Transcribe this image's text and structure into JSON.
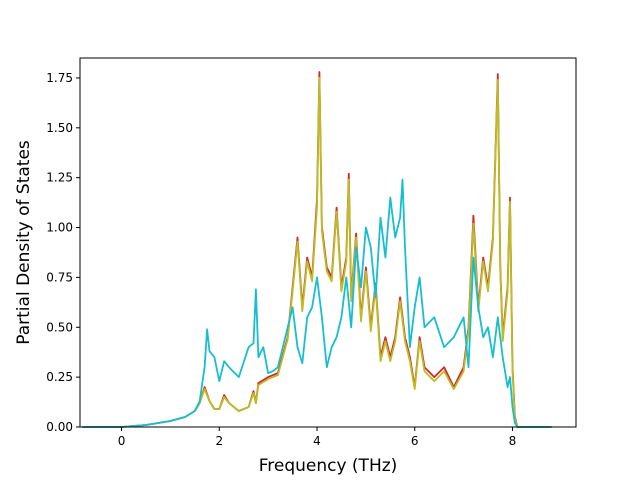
{
  "chart_data": {
    "type": "line",
    "title": "",
    "xlabel": "Frequency (THz)",
    "ylabel": "Partial Density of States",
    "xlim": [
      -0.85,
      9.3
    ],
    "ylim": [
      0,
      1.85
    ],
    "xticks": [
      0,
      2,
      4,
      6,
      8
    ],
    "xtick_labels": [
      "0",
      "2",
      "4",
      "6",
      "8"
    ],
    "yticks": [
      0.0,
      0.25,
      0.5,
      0.75,
      1.0,
      1.25,
      1.5,
      1.75
    ],
    "ytick_labels": [
      "0.00",
      "0.25",
      "0.50",
      "0.75",
      "1.00",
      "1.25",
      "1.50",
      "1.75"
    ],
    "grid": false,
    "legend": "none",
    "series": [
      {
        "color": "#d62728",
        "x": [
          -0.8,
          0.0,
          0.5,
          1.0,
          1.3,
          1.5,
          1.6,
          1.7,
          1.8,
          1.9,
          2.0,
          2.1,
          2.2,
          2.4,
          2.6,
          2.7,
          2.75,
          2.8,
          3.0,
          3.2,
          3.4,
          3.5,
          3.6,
          3.7,
          3.8,
          3.9,
          4.0,
          4.05,
          4.1,
          4.2,
          4.3,
          4.4,
          4.5,
          4.6,
          4.65,
          4.7,
          4.8,
          4.9,
          5.0,
          5.1,
          5.2,
          5.3,
          5.4,
          5.5,
          5.6,
          5.7,
          5.8,
          5.9,
          6.0,
          6.1,
          6.2,
          6.4,
          6.6,
          6.8,
          7.0,
          7.1,
          7.2,
          7.3,
          7.4,
          7.5,
          7.6,
          7.7,
          7.75,
          7.8,
          7.9,
          7.95,
          8.0,
          8.05,
          8.1,
          8.8
        ],
        "y": [
          0.0,
          0.0,
          0.01,
          0.03,
          0.05,
          0.08,
          0.12,
          0.2,
          0.13,
          0.09,
          0.09,
          0.16,
          0.12,
          0.08,
          0.1,
          0.18,
          0.12,
          0.22,
          0.25,
          0.27,
          0.45,
          0.7,
          0.95,
          0.6,
          0.85,
          0.75,
          1.14,
          1.78,
          1.0,
          0.8,
          0.75,
          1.1,
          0.7,
          0.85,
          1.27,
          0.65,
          0.97,
          0.55,
          0.8,
          0.5,
          0.72,
          0.35,
          0.45,
          0.35,
          0.45,
          0.65,
          0.45,
          0.35,
          0.2,
          0.45,
          0.3,
          0.25,
          0.3,
          0.2,
          0.3,
          0.5,
          1.06,
          0.6,
          0.85,
          0.7,
          0.95,
          1.77,
          0.8,
          0.45,
          0.7,
          1.15,
          0.3,
          0.05,
          0.0,
          0.0
        ]
      },
      {
        "color": "#bcbd22",
        "x": [
          -0.8,
          0.0,
          0.5,
          1.0,
          1.3,
          1.5,
          1.6,
          1.7,
          1.8,
          1.9,
          2.0,
          2.1,
          2.2,
          2.4,
          2.6,
          2.7,
          2.75,
          2.8,
          3.0,
          3.2,
          3.4,
          3.5,
          3.6,
          3.7,
          3.8,
          3.9,
          4.0,
          4.05,
          4.1,
          4.2,
          4.3,
          4.4,
          4.5,
          4.6,
          4.65,
          4.7,
          4.8,
          4.9,
          5.0,
          5.1,
          5.2,
          5.3,
          5.4,
          5.5,
          5.6,
          5.7,
          5.8,
          5.9,
          6.0,
          6.1,
          6.2,
          6.4,
          6.6,
          6.8,
          7.0,
          7.1,
          7.2,
          7.3,
          7.4,
          7.5,
          7.6,
          7.7,
          7.75,
          7.8,
          7.9,
          7.95,
          8.0,
          8.05,
          8.1,
          8.8
        ],
        "y": [
          0.0,
          0.0,
          0.01,
          0.03,
          0.05,
          0.08,
          0.12,
          0.19,
          0.13,
          0.09,
          0.09,
          0.15,
          0.12,
          0.08,
          0.1,
          0.17,
          0.12,
          0.21,
          0.24,
          0.26,
          0.44,
          0.68,
          0.93,
          0.58,
          0.83,
          0.73,
          1.1,
          1.75,
          0.98,
          0.78,
          0.73,
          1.08,
          0.68,
          0.83,
          1.24,
          0.63,
          0.95,
          0.53,
          0.78,
          0.48,
          0.7,
          0.33,
          0.43,
          0.33,
          0.43,
          0.63,
          0.43,
          0.33,
          0.19,
          0.43,
          0.28,
          0.23,
          0.28,
          0.19,
          0.28,
          0.48,
          1.02,
          0.58,
          0.83,
          0.68,
          0.93,
          1.74,
          0.78,
          0.43,
          0.68,
          1.13,
          0.28,
          0.04,
          0.0,
          0.0
        ]
      },
      {
        "color": "#17becf",
        "x": [
          -0.8,
          0.0,
          0.5,
          1.0,
          1.3,
          1.5,
          1.6,
          1.7,
          1.75,
          1.8,
          1.9,
          2.0,
          2.1,
          2.2,
          2.4,
          2.6,
          2.7,
          2.75,
          2.8,
          2.9,
          3.0,
          3.1,
          3.2,
          3.4,
          3.5,
          3.6,
          3.7,
          3.8,
          3.9,
          4.0,
          4.1,
          4.2,
          4.3,
          4.4,
          4.5,
          4.6,
          4.7,
          4.8,
          4.9,
          5.0,
          5.1,
          5.2,
          5.3,
          5.4,
          5.5,
          5.6,
          5.7,
          5.75,
          5.8,
          5.9,
          6.0,
          6.1,
          6.2,
          6.4,
          6.6,
          6.8,
          7.0,
          7.1,
          7.2,
          7.3,
          7.4,
          7.5,
          7.6,
          7.7,
          7.8,
          7.9,
          7.95,
          8.0,
          8.05,
          8.1,
          8.8
        ],
        "y": [
          0.0,
          0.0,
          0.01,
          0.03,
          0.05,
          0.08,
          0.13,
          0.3,
          0.49,
          0.38,
          0.35,
          0.23,
          0.33,
          0.3,
          0.25,
          0.4,
          0.42,
          0.69,
          0.35,
          0.4,
          0.27,
          0.28,
          0.3,
          0.5,
          0.6,
          0.4,
          0.32,
          0.55,
          0.6,
          0.75,
          0.55,
          0.3,
          0.4,
          0.45,
          0.55,
          0.75,
          0.5,
          0.9,
          0.7,
          1.0,
          0.9,
          0.65,
          1.05,
          0.85,
          1.15,
          0.95,
          1.05,
          1.24,
          0.9,
          0.4,
          0.6,
          0.75,
          0.5,
          0.55,
          0.4,
          0.45,
          0.55,
          0.3,
          0.85,
          0.6,
          0.45,
          0.5,
          0.35,
          0.55,
          0.35,
          0.2,
          0.25,
          0.1,
          0.02,
          0.0,
          0.0
        ]
      }
    ]
  }
}
